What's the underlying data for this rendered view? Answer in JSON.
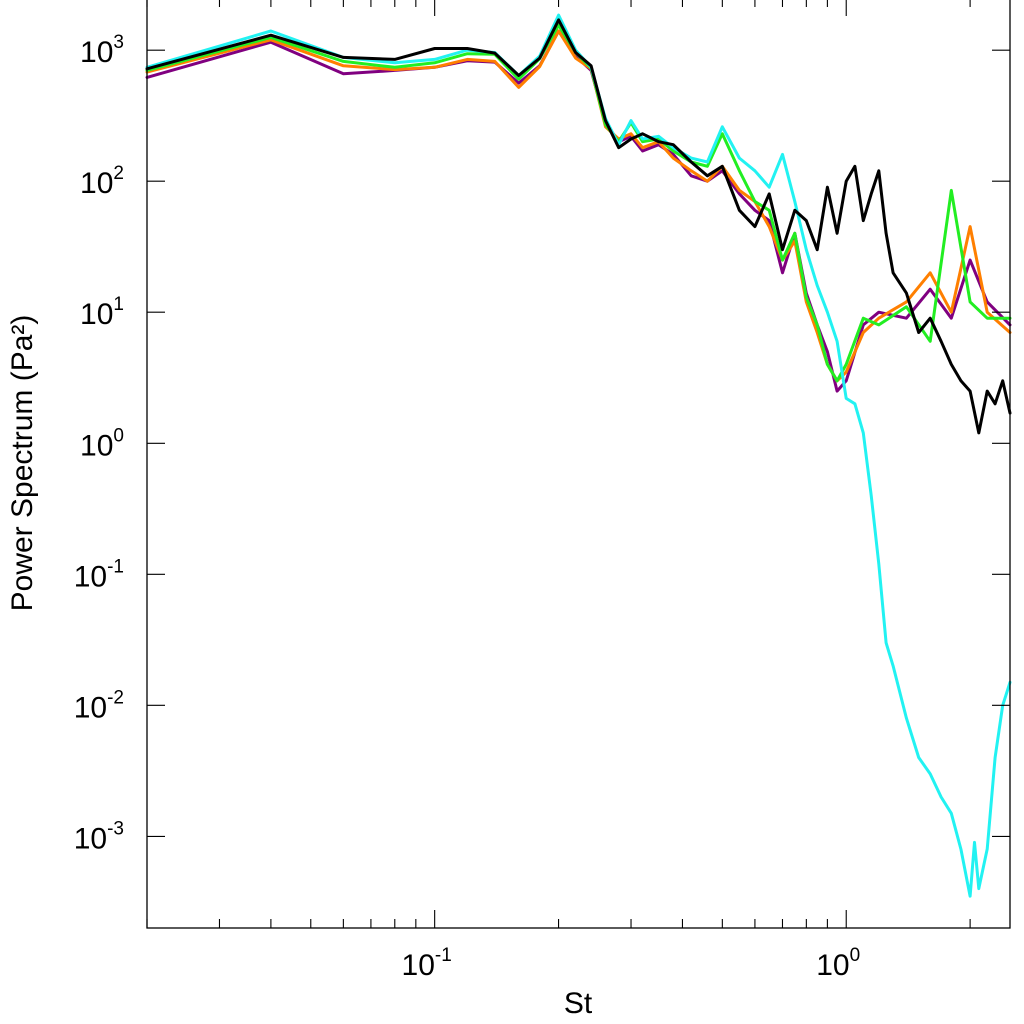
{
  "chart_data": {
    "type": "line",
    "xlabel": "St",
    "ylabel": "Power Spectrum (Pa²)",
    "xscale": "log",
    "yscale": "log",
    "xlim": [
      0.02,
      2.5
    ],
    "ylim": [
      0.0002,
      2500
    ],
    "x_ticks": [
      {
        "base": "10",
        "exp": "-1",
        "value": 0.1
      },
      {
        "base": "10",
        "exp": "0",
        "value": 1
      }
    ],
    "y_ticks": [
      {
        "base": "10",
        "exp": "3",
        "value": 1000
      },
      {
        "base": "10",
        "exp": "2",
        "value": 100
      },
      {
        "base": "10",
        "exp": "1",
        "value": 10
      },
      {
        "base": "10",
        "exp": "0",
        "value": 1
      },
      {
        "base": "10",
        "exp": "-1",
        "value": 0.1
      },
      {
        "base": "10",
        "exp": "-2",
        "value": 0.01
      },
      {
        "base": "10",
        "exp": "-3",
        "value": 0.001
      }
    ],
    "legend": "none",
    "series": [
      {
        "name": "purple",
        "color": "#800080",
        "points": [
          [
            0.02,
            620
          ],
          [
            0.04,
            1150
          ],
          [
            0.06,
            660
          ],
          [
            0.08,
            700
          ],
          [
            0.1,
            740
          ],
          [
            0.12,
            830
          ],
          [
            0.14,
            810
          ],
          [
            0.16,
            560
          ],
          [
            0.18,
            760
          ],
          [
            0.2,
            1400
          ],
          [
            0.22,
            900
          ],
          [
            0.24,
            700
          ],
          [
            0.26,
            280
          ],
          [
            0.28,
            200
          ],
          [
            0.3,
            220
          ],
          [
            0.32,
            170
          ],
          [
            0.35,
            190
          ],
          [
            0.38,
            160
          ],
          [
            0.42,
            110
          ],
          [
            0.46,
            100
          ],
          [
            0.5,
            120
          ],
          [
            0.55,
            80
          ],
          [
            0.6,
            60
          ],
          [
            0.65,
            50
          ],
          [
            0.7,
            20
          ],
          [
            0.75,
            40
          ],
          [
            0.8,
            14
          ],
          [
            0.85,
            8
          ],
          [
            0.9,
            5
          ],
          [
            0.95,
            2.5
          ],
          [
            1.0,
            3
          ],
          [
            1.1,
            8
          ],
          [
            1.2,
            10
          ],
          [
            1.4,
            9
          ],
          [
            1.6,
            15
          ],
          [
            1.8,
            9
          ],
          [
            2.0,
            25
          ],
          [
            2.2,
            12
          ],
          [
            2.5,
            8
          ]
        ]
      },
      {
        "name": "orange",
        "color": "#ff7f00",
        "points": [
          [
            0.02,
            680
          ],
          [
            0.04,
            1200
          ],
          [
            0.06,
            760
          ],
          [
            0.08,
            710
          ],
          [
            0.1,
            740
          ],
          [
            0.12,
            850
          ],
          [
            0.14,
            820
          ],
          [
            0.16,
            520
          ],
          [
            0.18,
            750
          ],
          [
            0.2,
            1400
          ],
          [
            0.22,
            870
          ],
          [
            0.24,
            720
          ],
          [
            0.26,
            260
          ],
          [
            0.28,
            210
          ],
          [
            0.3,
            230
          ],
          [
            0.32,
            180
          ],
          [
            0.35,
            200
          ],
          [
            0.38,
            150
          ],
          [
            0.42,
            120
          ],
          [
            0.46,
            100
          ],
          [
            0.5,
            130
          ],
          [
            0.55,
            85
          ],
          [
            0.6,
            70
          ],
          [
            0.65,
            45
          ],
          [
            0.7,
            25
          ],
          [
            0.75,
            35
          ],
          [
            0.8,
            12
          ],
          [
            0.85,
            7
          ],
          [
            0.9,
            4
          ],
          [
            0.95,
            3
          ],
          [
            1.0,
            3.5
          ],
          [
            1.1,
            7
          ],
          [
            1.2,
            9
          ],
          [
            1.4,
            12
          ],
          [
            1.6,
            20
          ],
          [
            1.8,
            10
          ],
          [
            2.0,
            45
          ],
          [
            2.2,
            10
          ],
          [
            2.5,
            7
          ]
        ]
      },
      {
        "name": "green",
        "color": "#22ee22",
        "points": [
          [
            0.02,
            700
          ],
          [
            0.04,
            1250
          ],
          [
            0.06,
            820
          ],
          [
            0.08,
            740
          ],
          [
            0.1,
            800
          ],
          [
            0.12,
            940
          ],
          [
            0.14,
            930
          ],
          [
            0.16,
            600
          ],
          [
            0.18,
            860
          ],
          [
            0.2,
            1550
          ],
          [
            0.22,
            960
          ],
          [
            0.24,
            730
          ],
          [
            0.26,
            270
          ],
          [
            0.28,
            200
          ],
          [
            0.3,
            280
          ],
          [
            0.32,
            200
          ],
          [
            0.35,
            210
          ],
          [
            0.38,
            170
          ],
          [
            0.42,
            140
          ],
          [
            0.46,
            130
          ],
          [
            0.5,
            230
          ],
          [
            0.55,
            120
          ],
          [
            0.6,
            70
          ],
          [
            0.65,
            60
          ],
          [
            0.7,
            25
          ],
          [
            0.75,
            40
          ],
          [
            0.8,
            13
          ],
          [
            0.85,
            8
          ],
          [
            0.9,
            4
          ],
          [
            0.95,
            3
          ],
          [
            1.0,
            4
          ],
          [
            1.1,
            9
          ],
          [
            1.2,
            8
          ],
          [
            1.4,
            11
          ],
          [
            1.6,
            6
          ],
          [
            1.8,
            85
          ],
          [
            2.0,
            12
          ],
          [
            2.2,
            9
          ],
          [
            2.5,
            9
          ]
        ]
      },
      {
        "name": "cyan",
        "color": "#22f2f2",
        "points": [
          [
            0.02,
            740
          ],
          [
            0.04,
            1400
          ],
          [
            0.06,
            880
          ],
          [
            0.08,
            800
          ],
          [
            0.1,
            850
          ],
          [
            0.12,
            1000
          ],
          [
            0.14,
            960
          ],
          [
            0.16,
            640
          ],
          [
            0.18,
            900
          ],
          [
            0.2,
            1850
          ],
          [
            0.22,
            1000
          ],
          [
            0.24,
            740
          ],
          [
            0.26,
            300
          ],
          [
            0.28,
            190
          ],
          [
            0.3,
            290
          ],
          [
            0.32,
            210
          ],
          [
            0.35,
            220
          ],
          [
            0.38,
            180
          ],
          [
            0.42,
            150
          ],
          [
            0.46,
            140
          ],
          [
            0.5,
            260
          ],
          [
            0.55,
            150
          ],
          [
            0.6,
            120
          ],
          [
            0.65,
            90
          ],
          [
            0.7,
            160
          ],
          [
            0.75,
            70
          ],
          [
            0.8,
            30
          ],
          [
            0.85,
            16
          ],
          [
            0.9,
            10
          ],
          [
            0.95,
            6
          ],
          [
            1.0,
            2.2
          ],
          [
            1.05,
            2
          ],
          [
            1.1,
            1.2
          ],
          [
            1.15,
            0.4
          ],
          [
            1.2,
            0.12
          ],
          [
            1.25,
            0.03
          ],
          [
            1.3,
            0.02
          ],
          [
            1.4,
            0.008
          ],
          [
            1.5,
            0.004
          ],
          [
            1.6,
            0.003
          ],
          [
            1.7,
            0.002
          ],
          [
            1.8,
            0.0015
          ],
          [
            1.9,
            0.0008
          ],
          [
            2.0,
            0.00035
          ],
          [
            2.05,
            0.0009
          ],
          [
            2.1,
            0.0004
          ],
          [
            2.2,
            0.0008
          ],
          [
            2.3,
            0.004
          ],
          [
            2.4,
            0.01
          ],
          [
            2.5,
            0.015
          ]
        ]
      },
      {
        "name": "black",
        "color": "#000000",
        "points": [
          [
            0.02,
            720
          ],
          [
            0.04,
            1300
          ],
          [
            0.06,
            880
          ],
          [
            0.08,
            850
          ],
          [
            0.1,
            1030
          ],
          [
            0.12,
            1030
          ],
          [
            0.14,
            950
          ],
          [
            0.16,
            640
          ],
          [
            0.18,
            870
          ],
          [
            0.2,
            1700
          ],
          [
            0.22,
            960
          ],
          [
            0.24,
            760
          ],
          [
            0.26,
            290
          ],
          [
            0.28,
            180
          ],
          [
            0.3,
            210
          ],
          [
            0.32,
            230
          ],
          [
            0.35,
            200
          ],
          [
            0.38,
            190
          ],
          [
            0.42,
            140
          ],
          [
            0.46,
            110
          ],
          [
            0.5,
            130
          ],
          [
            0.55,
            60
          ],
          [
            0.6,
            45
          ],
          [
            0.65,
            80
          ],
          [
            0.7,
            30
          ],
          [
            0.75,
            60
          ],
          [
            0.8,
            50
          ],
          [
            0.85,
            30
          ],
          [
            0.9,
            90
          ],
          [
            0.95,
            40
          ],
          [
            1.0,
            100
          ],
          [
            1.05,
            130
          ],
          [
            1.1,
            50
          ],
          [
            1.15,
            80
          ],
          [
            1.2,
            120
          ],
          [
            1.25,
            40
          ],
          [
            1.3,
            20
          ],
          [
            1.4,
            14
          ],
          [
            1.5,
            7
          ],
          [
            1.6,
            9
          ],
          [
            1.7,
            6
          ],
          [
            1.8,
            4
          ],
          [
            1.9,
            3
          ],
          [
            2.0,
            2.5
          ],
          [
            2.1,
            1.2
          ],
          [
            2.2,
            2.5
          ],
          [
            2.3,
            2
          ],
          [
            2.4,
            3
          ],
          [
            2.5,
            1.7
          ]
        ]
      }
    ]
  }
}
